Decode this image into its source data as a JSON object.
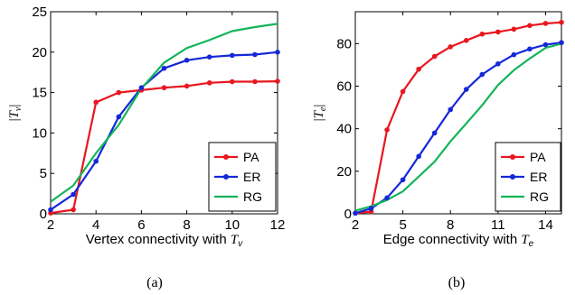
{
  "chart_data": [
    {
      "type": "line",
      "caption": "(a)",
      "xlabel_prefix": "Vertex connectivity with ",
      "xlabel_symbol": "T",
      "xlabel_sub": "v",
      "ylabel_symbol": "T",
      "ylabel_sub": "v",
      "xlim": [
        2,
        12
      ],
      "ylim": [
        0,
        25
      ],
      "xticks": [
        2,
        4,
        6,
        8,
        10,
        12
      ],
      "yticks": [
        0,
        5,
        10,
        15,
        20,
        25
      ],
      "legend_position": "lower-right",
      "series": [
        {
          "name": "PA",
          "color": "#e8171f",
          "marker": "dot",
          "x": [
            2,
            3,
            4,
            5,
            6,
            7,
            8,
            9,
            10,
            11,
            12
          ],
          "y": [
            0.1,
            0.5,
            13.8,
            15.0,
            15.3,
            15.6,
            15.8,
            16.2,
            16.35,
            16.35,
            16.4
          ]
        },
        {
          "name": "ER",
          "color": "#1428d8",
          "marker": "dot",
          "x": [
            2,
            3,
            4,
            5,
            6,
            7,
            8,
            9,
            10,
            11,
            12
          ],
          "y": [
            0.5,
            2.4,
            6.5,
            12.0,
            15.6,
            18.0,
            19.0,
            19.4,
            19.6,
            19.7,
            20.0
          ]
        },
        {
          "name": "RG",
          "color": "#14b45a",
          "marker": "none",
          "x": [
            2,
            3,
            4,
            5,
            6,
            7,
            8,
            9,
            10,
            11,
            12
          ],
          "y": [
            1.5,
            3.5,
            7.5,
            11.0,
            15.5,
            18.7,
            20.5,
            21.5,
            22.6,
            23.1,
            23.5
          ]
        }
      ]
    },
    {
      "type": "line",
      "caption": "(b)",
      "xlabel_prefix": "Edge connectivity with ",
      "xlabel_symbol": "T",
      "xlabel_sub": "e",
      "ylabel_symbol": "T",
      "ylabel_sub": "e",
      "xlim": [
        2,
        15
      ],
      "ylim": [
        0,
        95
      ],
      "xticks": [
        2,
        5,
        8,
        11,
        14
      ],
      "yticks": [
        0,
        20,
        40,
        60,
        80
      ],
      "legend_position": "lower-right",
      "series": [
        {
          "name": "PA",
          "color": "#e8171f",
          "marker": "dot",
          "x": [
            2,
            3,
            4,
            5,
            6,
            7,
            8,
            9,
            10,
            11,
            12,
            13,
            14,
            15
          ],
          "y": [
            0.3,
            1.0,
            39.5,
            57.5,
            68.0,
            74.0,
            78.5,
            81.5,
            84.5,
            85.5,
            86.8,
            88.5,
            89.5,
            90.0
          ]
        },
        {
          "name": "ER",
          "color": "#1428d8",
          "marker": "dot",
          "x": [
            2,
            3,
            4,
            5,
            6,
            7,
            8,
            9,
            10,
            11,
            12,
            13,
            14,
            15
          ],
          "y": [
            0.3,
            2.5,
            7.5,
            16.0,
            27.0,
            38.0,
            49.0,
            58.5,
            65.5,
            70.5,
            74.8,
            77.5,
            79.5,
            80.5
          ]
        },
        {
          "name": "RG",
          "color": "#14b45a",
          "marker": "none",
          "x": [
            2,
            3,
            4,
            5,
            6,
            7,
            8,
            9,
            10,
            11,
            12,
            13,
            14,
            15
          ],
          "y": [
            1.5,
            3.5,
            6.5,
            10.5,
            17.5,
            24.5,
            34.0,
            42.5,
            51.0,
            60.5,
            67.5,
            73.0,
            78.0,
            80.0
          ]
        }
      ]
    }
  ]
}
